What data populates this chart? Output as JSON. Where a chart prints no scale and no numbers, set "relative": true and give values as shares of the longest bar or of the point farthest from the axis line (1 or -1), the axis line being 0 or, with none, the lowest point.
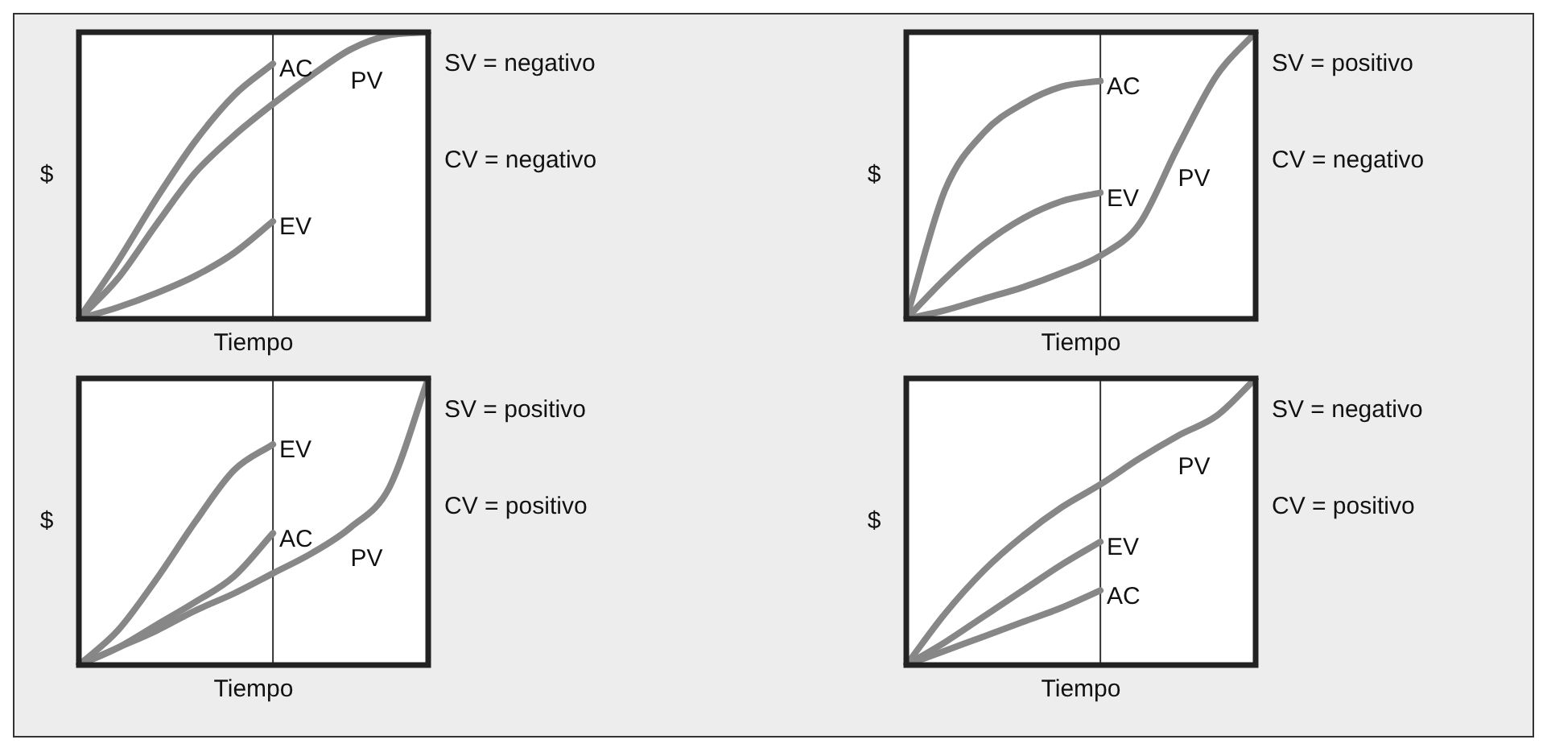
{
  "chart_data": [
    {
      "type": "line",
      "relative": true,
      "xlabel": "Tiempo",
      "ylabel": "$",
      "legend": false,
      "grid": false,
      "marker": "none",
      "line_style": "solid",
      "categories": [
        null,
        null,
        null,
        null,
        null,
        null,
        null,
        null,
        null,
        null
      ],
      "annotations": [
        "SV = negativo",
        "CV = negativo"
      ],
      "series": [
        {
          "name": "AC",
          "color": "#878787",
          "values": [
            0,
            0.2,
            0.42,
            0.62,
            0.78,
            0.89,
            null,
            null,
            null,
            null
          ]
        },
        {
          "name": "PV",
          "color": "#878787",
          "values": [
            0,
            0.14,
            0.33,
            0.51,
            0.64,
            0.75,
            0.85,
            0.94,
            0.99,
            1
          ]
        },
        {
          "name": "EV",
          "color": "#878787",
          "values": [
            0,
            0.04,
            0.09,
            0.15,
            0.23,
            0.34,
            null,
            null,
            null,
            null
          ]
        }
      ]
    },
    {
      "type": "line",
      "relative": true,
      "xlabel": "Tiempo",
      "ylabel": "$",
      "legend": false,
      "grid": false,
      "marker": "none",
      "line_style": "solid",
      "categories": [
        null,
        null,
        null,
        null,
        null,
        null,
        null,
        null,
        null,
        null
      ],
      "annotations": [
        "SV = positivo",
        "CV = negativo"
      ],
      "series": [
        {
          "name": "AC",
          "color": "#878787",
          "values": [
            0,
            0.45,
            0.65,
            0.75,
            0.81,
            0.83,
            null,
            null,
            null,
            null
          ]
        },
        {
          "name": "EV",
          "color": "#878787",
          "values": [
            0,
            0.14,
            0.26,
            0.35,
            0.41,
            0.44,
            null,
            null,
            null,
            null
          ]
        },
        {
          "name": "PV",
          "color": "#878787",
          "values": [
            0,
            0.03,
            0.07,
            0.11,
            0.16,
            0.22,
            0.33,
            0.6,
            0.85,
            1
          ]
        }
      ]
    },
    {
      "type": "line",
      "relative": true,
      "xlabel": "Tiempo",
      "ylabel": "$",
      "legend": false,
      "grid": false,
      "marker": "none",
      "line_style": "solid",
      "categories": [
        null,
        null,
        null,
        null,
        null,
        null,
        null,
        null,
        null,
        null
      ],
      "annotations": [
        "SV = positivo",
        "CV = positivo"
      ],
      "series": [
        {
          "name": "EV",
          "color": "#878787",
          "values": [
            0,
            0.12,
            0.3,
            0.5,
            0.68,
            0.77,
            null,
            null,
            null,
            null
          ]
        },
        {
          "name": "AC",
          "color": "#878787",
          "values": [
            0,
            0.06,
            0.14,
            0.22,
            0.31,
            0.46,
            null,
            null,
            null,
            null
          ]
        },
        {
          "name": "PV",
          "color": "#878787",
          "values": [
            0,
            0.06,
            0.12,
            0.19,
            0.25,
            0.32,
            0.39,
            0.48,
            0.62,
            1
          ]
        }
      ]
    },
    {
      "type": "line",
      "relative": true,
      "xlabel": "Tiempo",
      "ylabel": "$",
      "legend": false,
      "grid": false,
      "marker": "none",
      "line_style": "solid",
      "categories": [
        null,
        null,
        null,
        null,
        null,
        null,
        null,
        null,
        null,
        null
      ],
      "annotations": [
        "SV = negativo",
        "CV = positivo"
      ],
      "series": [
        {
          "name": "PV",
          "color": "#878787",
          "values": [
            0,
            0.18,
            0.33,
            0.45,
            0.55,
            0.63,
            0.72,
            0.8,
            0.87,
            1
          ]
        },
        {
          "name": "EV",
          "color": "#878787",
          "values": [
            0,
            0.08,
            0.17,
            0.26,
            0.35,
            0.43,
            null,
            null,
            null,
            null
          ]
        },
        {
          "name": "AC",
          "color": "#878787",
          "values": [
            0,
            0.05,
            0.1,
            0.15,
            0.2,
            0.26,
            null,
            null,
            null,
            null
          ]
        }
      ]
    }
  ]
}
